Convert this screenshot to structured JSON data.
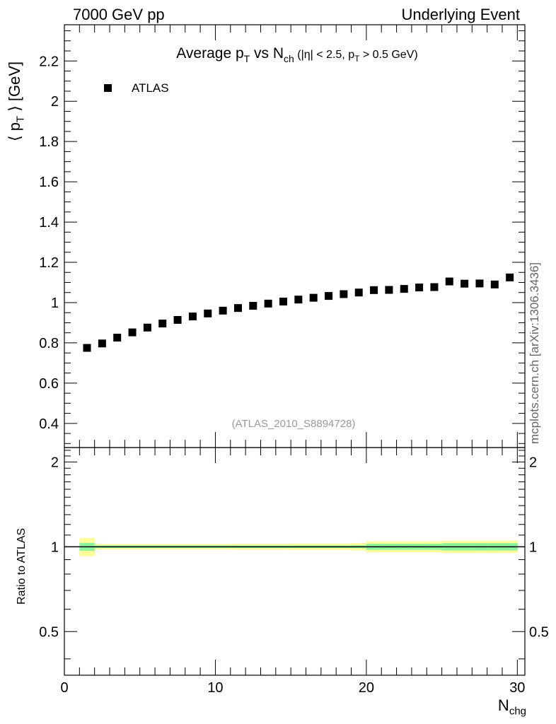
{
  "header": {
    "left": "7000 GeV pp",
    "right": "Underlying Event"
  },
  "side_credit": "mcplots.cern.ch [arXiv:1306.3436]",
  "analysis_tag": "(ATLAS_2010_S8894728)",
  "chart_data": [
    {
      "type": "scatter",
      "title_main": "Average p",
      "title_sub1": "T",
      "title_mid": " vs N",
      "title_sub2": "ch",
      "title_cut1": " (|η| < 2.5, p",
      "title_sub3": "T",
      "title_cut2": " > 0.5 GeV)",
      "ylabel_pre": "⟨ p",
      "ylabel_sub": "T",
      "ylabel_post": " ⟩ [GeV]",
      "xlim": [
        0,
        30.5
      ],
      "ylim": [
        0.28,
        2.38
      ],
      "yticks": [
        "0.4",
        "0.6",
        "0.8",
        "1",
        "1.2",
        "1.4",
        "1.6",
        "1.8",
        "2",
        "2.2"
      ],
      "legend": {
        "label": "ATLAS",
        "position": "top-left"
      },
      "series": [
        {
          "name": "ATLAS",
          "x": [
            1.5,
            2.5,
            3.5,
            4.5,
            5.5,
            6.5,
            7.5,
            8.5,
            9.5,
            10.5,
            11.5,
            12.5,
            13.5,
            14.5,
            15.5,
            16.5,
            17.5,
            18.5,
            19.5,
            20.5,
            21.5,
            22.5,
            23.5,
            24.5,
            25.5,
            26.5,
            27.5,
            28.5,
            29.5
          ],
          "y": [
            0.775,
            0.797,
            0.826,
            0.852,
            0.876,
            0.896,
            0.914,
            0.931,
            0.946,
            0.96,
            0.973,
            0.984,
            0.995,
            1.005,
            1.015,
            1.024,
            1.033,
            1.042,
            1.05,
            1.062,
            1.063,
            1.068,
            1.075,
            1.077,
            1.105,
            1.094,
            1.095,
            1.09,
            1.125
          ]
        }
      ]
    },
    {
      "type": "band",
      "ylabel": "Ratio to ATLAS",
      "xlabel_main": "N",
      "xlabel_sub": "chg",
      "xlim": [
        0,
        30.5
      ],
      "ylim": [
        0.35,
        2.25
      ],
      "yticks": [
        "0.5",
        "1",
        "2"
      ],
      "xticks": [
        "0",
        "10",
        "20",
        "30"
      ],
      "bands": {
        "x_edges": [
          1,
          2,
          3,
          4,
          5,
          6,
          7,
          8,
          9,
          10,
          11,
          12,
          13,
          14,
          15,
          16,
          17,
          18,
          19,
          20,
          21,
          22,
          23,
          24,
          25,
          26,
          27,
          28,
          29,
          30
        ],
        "stat_half_width": [
          0.032,
          0.01,
          0.01,
          0.01,
          0.01,
          0.01,
          0.01,
          0.01,
          0.01,
          0.01,
          0.01,
          0.01,
          0.01,
          0.01,
          0.01,
          0.01,
          0.01,
          0.01,
          0.012,
          0.025,
          0.025,
          0.025,
          0.025,
          0.025,
          0.03,
          0.03,
          0.03,
          0.03,
          0.03
        ],
        "total_half_width": [
          0.075,
          0.022,
          0.022,
          0.022,
          0.022,
          0.022,
          0.022,
          0.022,
          0.022,
          0.022,
          0.024,
          0.024,
          0.024,
          0.024,
          0.026,
          0.026,
          0.026,
          0.026,
          0.03,
          0.045,
          0.045,
          0.045,
          0.045,
          0.045,
          0.05,
          0.05,
          0.05,
          0.05,
          0.05
        ],
        "stat_color": "#8cf59b",
        "total_color": "#fdfc9a"
      }
    }
  ]
}
